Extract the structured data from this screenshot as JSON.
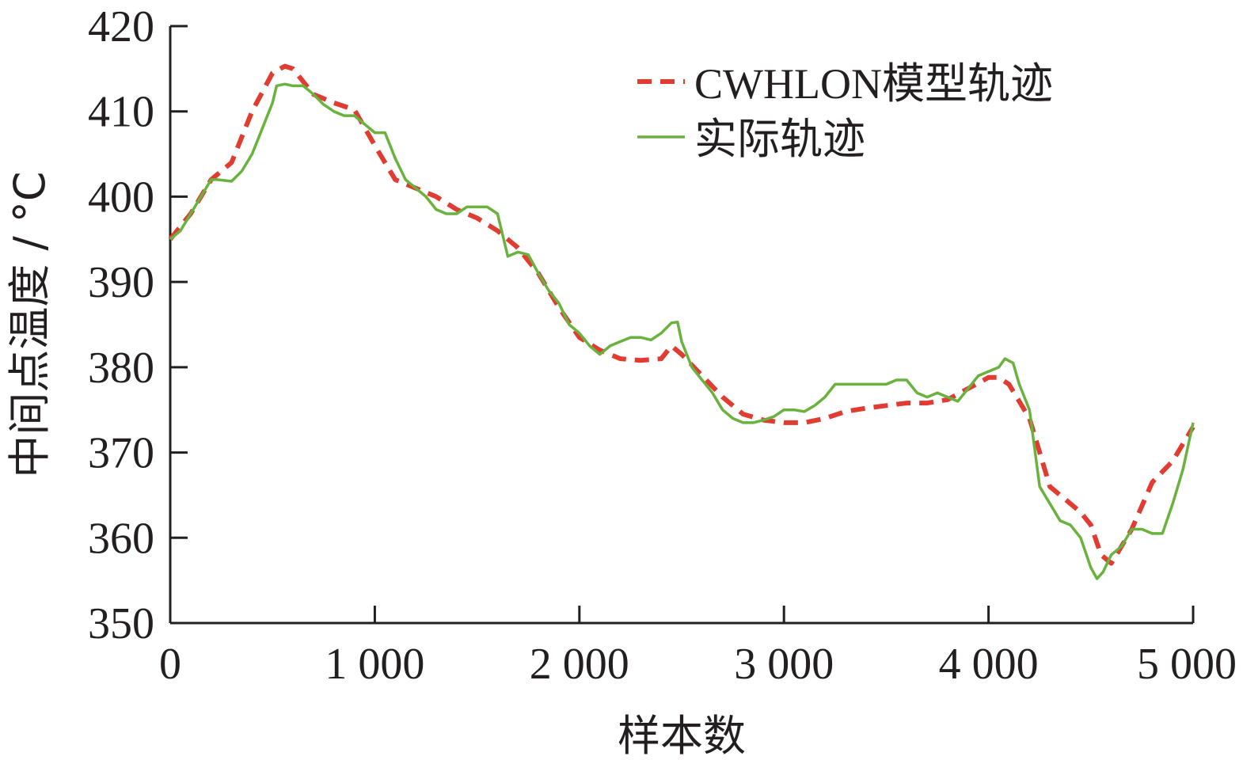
{
  "chart_data": {
    "type": "line",
    "xlabel": "样本数",
    "ylabel": "中间点温度 / °C",
    "xlim": [
      0,
      5000
    ],
    "ylim": [
      350,
      420
    ],
    "x_ticks": [
      0,
      1000,
      2000,
      3000,
      4000,
      5000
    ],
    "x_tick_labels": [
      "0",
      "1 000",
      "2 000",
      "3 000",
      "4 000",
      "5 000"
    ],
    "y_ticks": [
      350,
      360,
      370,
      380,
      390,
      400,
      410,
      420
    ],
    "y_tick_labels": [
      "350",
      "360",
      "370",
      "380",
      "390",
      "400",
      "410",
      "420"
    ],
    "grid": false,
    "legend_position": "top-right",
    "series": [
      {
        "name": "CWHLON模型轨迹",
        "color": "#e03c31",
        "style": "dashed",
        "x": [
          0,
          100,
          200,
          300,
          400,
          500,
          560,
          600,
          700,
          800,
          900,
          1000,
          1100,
          1200,
          1300,
          1400,
          1500,
          1600,
          1700,
          1800,
          1900,
          2000,
          2100,
          2200,
          2300,
          2400,
          2450,
          2500,
          2600,
          2700,
          2800,
          2900,
          3000,
          3100,
          3200,
          3300,
          3400,
          3500,
          3600,
          3700,
          3800,
          3900,
          4000,
          4050,
          4100,
          4200,
          4300,
          4400,
          4450,
          4500,
          4550,
          4600,
          4700,
          4800,
          4900,
          5000
        ],
        "values": [
          395,
          398,
          402,
          404,
          410,
          414.5,
          415.3,
          415,
          412,
          411,
          410.2,
          406,
          402,
          401,
          400,
          398.5,
          397.5,
          396,
          394,
          391,
          387,
          383.5,
          382,
          381,
          380.8,
          381,
          382.5,
          381.5,
          379,
          376.5,
          374.5,
          373.8,
          373.5,
          373.5,
          374,
          374.8,
          375.2,
          375.5,
          375.8,
          375.8,
          376.2,
          377.5,
          378.8,
          378.8,
          378,
          374,
          366,
          364,
          363,
          361.5,
          358,
          357,
          361,
          366.5,
          369,
          373
        ]
      },
      {
        "name": "实际轨迹",
        "color": "#6ab23e",
        "style": "solid",
        "x": [
          0,
          50,
          100,
          150,
          200,
          230,
          300,
          350,
          400,
          450,
          500,
          520,
          560,
          600,
          650,
          700,
          750,
          800,
          850,
          900,
          950,
          1000,
          1050,
          1100,
          1150,
          1200,
          1250,
          1300,
          1350,
          1400,
          1450,
          1500,
          1550,
          1600,
          1650,
          1700,
          1750,
          1800,
          1850,
          1900,
          1950,
          2000,
          2050,
          2100,
          2150,
          2200,
          2250,
          2300,
          2350,
          2400,
          2450,
          2480,
          2500,
          2550,
          2600,
          2650,
          2700,
          2750,
          2800,
          2850,
          2900,
          2950,
          3000,
          3050,
          3100,
          3150,
          3200,
          3250,
          3300,
          3350,
          3400,
          3450,
          3500,
          3550,
          3600,
          3650,
          3700,
          3750,
          3800,
          3850,
          3900,
          3950,
          4000,
          4050,
          4080,
          4120,
          4150,
          4200,
          4250,
          4300,
          4350,
          4400,
          4450,
          4500,
          4530,
          4560,
          4600,
          4650,
          4700,
          4750,
          4800,
          4850,
          4900,
          4950,
          5000
        ],
        "values": [
          395,
          396,
          398,
          400,
          402,
          402,
          401.8,
          403,
          405,
          408,
          411,
          413,
          413.2,
          413,
          413,
          412,
          410.8,
          410,
          409.5,
          409.5,
          408.5,
          407.5,
          407.5,
          404.5,
          402,
          401,
          400,
          398.5,
          398,
          398,
          398.8,
          398.8,
          398.8,
          398,
          393,
          393.5,
          393.2,
          391,
          389,
          387.5,
          385,
          384,
          382.5,
          381.5,
          382.5,
          383,
          383.5,
          383.5,
          383.2,
          384,
          385.2,
          385.3,
          383,
          380,
          378.5,
          377,
          375,
          374,
          373.5,
          373.5,
          373.8,
          374.2,
          375,
          375,
          374.8,
          375.5,
          376.5,
          378,
          378,
          378,
          378,
          378,
          378,
          378.5,
          378.5,
          377,
          376.5,
          377,
          376.5,
          376,
          377.5,
          379,
          379.5,
          380,
          381,
          380.5,
          378,
          375,
          366,
          364,
          362,
          361.5,
          360,
          356.5,
          355.2,
          356,
          358,
          359,
          361,
          361,
          360.5,
          360.5,
          364,
          368,
          373.5
        ]
      }
    ]
  }
}
